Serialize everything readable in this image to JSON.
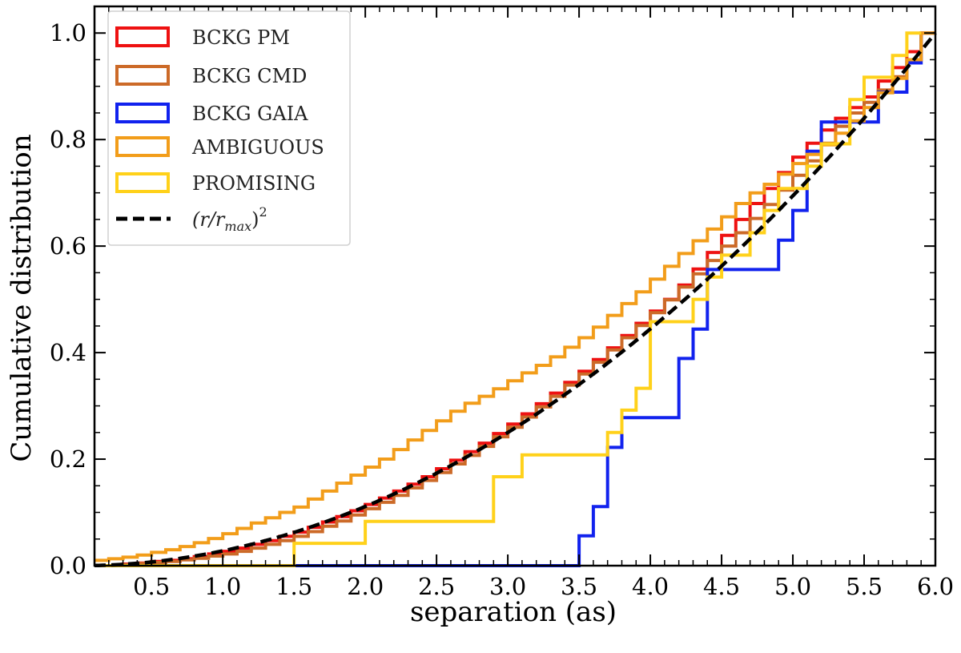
{
  "chart_data": {
    "type": "step",
    "title": "",
    "xlabel": "separation (as)",
    "ylabel": "Cumulative distribution",
    "xlim": [
      0.1,
      6.0
    ],
    "ylim": [
      0.0,
      1.05
    ],
    "x_ticks": [
      "0.5",
      "1.0",
      "1.5",
      "2.0",
      "2.5",
      "3.0",
      "3.5",
      "4.0",
      "4.5",
      "5.0",
      "5.5",
      "6.0"
    ],
    "y_ticks": [
      "0.0",
      "0.2",
      "0.4",
      "0.6",
      "0.8",
      "1.0"
    ],
    "legend_position": "top-left",
    "series": [
      {
        "name": "BCKG PM",
        "color": "#ee1111",
        "x": [
          0.1,
          0.2,
          0.3,
          0.4,
          0.5,
          0.6,
          0.7,
          0.8,
          0.9,
          1.0,
          1.1,
          1.2,
          1.3,
          1.4,
          1.5,
          1.6,
          1.7,
          1.8,
          1.9,
          2.0,
          2.1,
          2.2,
          2.3,
          2.4,
          2.5,
          2.6,
          2.7,
          2.8,
          2.9,
          3.0,
          3.1,
          3.2,
          3.3,
          3.4,
          3.5,
          3.6,
          3.7,
          3.8,
          3.9,
          4.0,
          4.1,
          4.2,
          4.3,
          4.4,
          4.5,
          4.6,
          4.7,
          4.8,
          4.9,
          5.0,
          5.1,
          5.2,
          5.3,
          5.4,
          5.5,
          5.6,
          5.7,
          5.8,
          5.9,
          6.0
        ],
        "y": [
          0.0,
          0.0,
          0.003,
          0.005,
          0.008,
          0.01,
          0.013,
          0.017,
          0.022,
          0.027,
          0.033,
          0.04,
          0.047,
          0.055,
          0.063,
          0.072,
          0.082,
          0.092,
          0.103,
          0.115,
          0.127,
          0.14,
          0.153,
          0.167,
          0.182,
          0.198,
          0.214,
          0.23,
          0.248,
          0.266,
          0.285,
          0.304,
          0.324,
          0.344,
          0.365,
          0.387,
          0.409,
          0.432,
          0.455,
          0.478,
          0.5,
          0.527,
          0.557,
          0.588,
          0.62,
          0.65,
          0.68,
          0.708,
          0.738,
          0.767,
          0.793,
          0.818,
          0.84,
          0.86,
          0.88,
          0.91,
          0.935,
          0.965,
          1.0,
          1.0
        ]
      },
      {
        "name": "BCKG CMD",
        "color": "#cc6a28",
        "x": [
          0.1,
          0.2,
          0.3,
          0.4,
          0.5,
          0.6,
          0.7,
          0.8,
          0.9,
          1.0,
          1.1,
          1.2,
          1.3,
          1.4,
          1.5,
          1.6,
          1.7,
          1.8,
          1.9,
          2.0,
          2.1,
          2.2,
          2.3,
          2.4,
          2.5,
          2.6,
          2.7,
          2.8,
          2.9,
          3.0,
          3.1,
          3.2,
          3.3,
          3.4,
          3.5,
          3.6,
          3.7,
          3.8,
          3.9,
          4.0,
          4.1,
          4.2,
          4.3,
          4.4,
          4.5,
          4.6,
          4.7,
          4.8,
          4.9,
          5.0,
          5.1,
          5.2,
          5.3,
          5.4,
          5.5,
          5.6,
          5.7,
          5.8,
          5.9,
          6.0
        ],
        "y": [
          0.0,
          0.0,
          0.002,
          0.004,
          0.006,
          0.008,
          0.011,
          0.014,
          0.018,
          0.022,
          0.027,
          0.033,
          0.04,
          0.047,
          0.055,
          0.064,
          0.074,
          0.084,
          0.095,
          0.107,
          0.119,
          0.132,
          0.146,
          0.16,
          0.175,
          0.191,
          0.207,
          0.224,
          0.242,
          0.26,
          0.279,
          0.298,
          0.318,
          0.339,
          0.36,
          0.382,
          0.405,
          0.428,
          0.451,
          0.475,
          0.499,
          0.523,
          0.548,
          0.573,
          0.6,
          0.625,
          0.652,
          0.678,
          0.705,
          0.733,
          0.76,
          0.793,
          0.825,
          0.85,
          0.87,
          0.893,
          0.918,
          0.95,
          1.0,
          1.0
        ]
      },
      {
        "name": "BCKG GAIA",
        "color": "#1122ee",
        "x": [
          1.5,
          2.2,
          3.5,
          3.6,
          3.7,
          3.8,
          4.2,
          4.3,
          4.4,
          4.9,
          5.0,
          5.1,
          5.2,
          5.4,
          5.6,
          5.8,
          5.9
        ],
        "y": [
          0.0,
          0.0,
          0.056,
          0.111,
          0.222,
          0.278,
          0.389,
          0.444,
          0.556,
          0.611,
          0.667,
          0.778,
          0.833,
          0.833,
          0.889,
          0.944,
          1.0
        ]
      },
      {
        "name": "AMBIGUOUS",
        "color": "#f29d1a",
        "x": [
          0.1,
          0.2,
          0.3,
          0.4,
          0.5,
          0.6,
          0.7,
          0.8,
          0.9,
          1.0,
          1.1,
          1.2,
          1.3,
          1.4,
          1.5,
          1.6,
          1.7,
          1.8,
          1.9,
          2.0,
          2.1,
          2.2,
          2.3,
          2.4,
          2.5,
          2.6,
          2.7,
          2.8,
          2.9,
          3.0,
          3.1,
          3.2,
          3.3,
          3.4,
          3.5,
          3.6,
          3.7,
          3.8,
          3.9,
          4.0,
          4.1,
          4.2,
          4.3,
          4.4,
          4.5,
          4.6,
          4.7,
          4.8,
          4.9,
          5.0,
          5.1,
          5.2,
          5.3,
          5.4,
          5.5,
          5.6,
          5.7,
          5.8,
          5.9,
          6.0
        ],
        "y": [
          0.01,
          0.013,
          0.016,
          0.02,
          0.025,
          0.03,
          0.036,
          0.043,
          0.051,
          0.06,
          0.07,
          0.08,
          0.09,
          0.1,
          0.11,
          0.125,
          0.14,
          0.155,
          0.17,
          0.185,
          0.2,
          0.218,
          0.236,
          0.254,
          0.272,
          0.29,
          0.305,
          0.318,
          0.332,
          0.347,
          0.362,
          0.376,
          0.392,
          0.41,
          0.428,
          0.448,
          0.47,
          0.492,
          0.514,
          0.538,
          0.562,
          0.586,
          0.61,
          0.632,
          0.655,
          0.68,
          0.7,
          0.716,
          0.735,
          0.755,
          0.772,
          0.79,
          0.812,
          0.835,
          0.86,
          0.888,
          0.915,
          0.95,
          1.0,
          1.0
        ]
      },
      {
        "name": "PROMISING",
        "color": "#ffd11a",
        "x": [
          0.1,
          1.5,
          2.0,
          2.9,
          3.1,
          3.7,
          3.8,
          3.9,
          4.0,
          4.3,
          4.4,
          4.5,
          4.7,
          4.8,
          4.9,
          5.1,
          5.2,
          5.3,
          5.4,
          5.5,
          5.6,
          5.7,
          5.8,
          5.9
        ],
        "y": [
          0.0,
          0.042,
          0.083,
          0.167,
          0.208,
          0.25,
          0.292,
          0.333,
          0.458,
          0.5,
          0.542,
          0.583,
          0.625,
          0.667,
          0.708,
          0.75,
          0.792,
          0.792,
          0.875,
          0.917,
          0.917,
          0.958,
          1.0,
          1.0
        ]
      },
      {
        "name": "(r/r_max)^2",
        "color": "#000000",
        "style": "dashed",
        "function": "(x/6)^2"
      }
    ]
  },
  "legend_labels": {
    "dashed_base": "(r/r",
    "dashed_sub": "max",
    "dashed_close": ")",
    "dashed_sup": "2"
  }
}
